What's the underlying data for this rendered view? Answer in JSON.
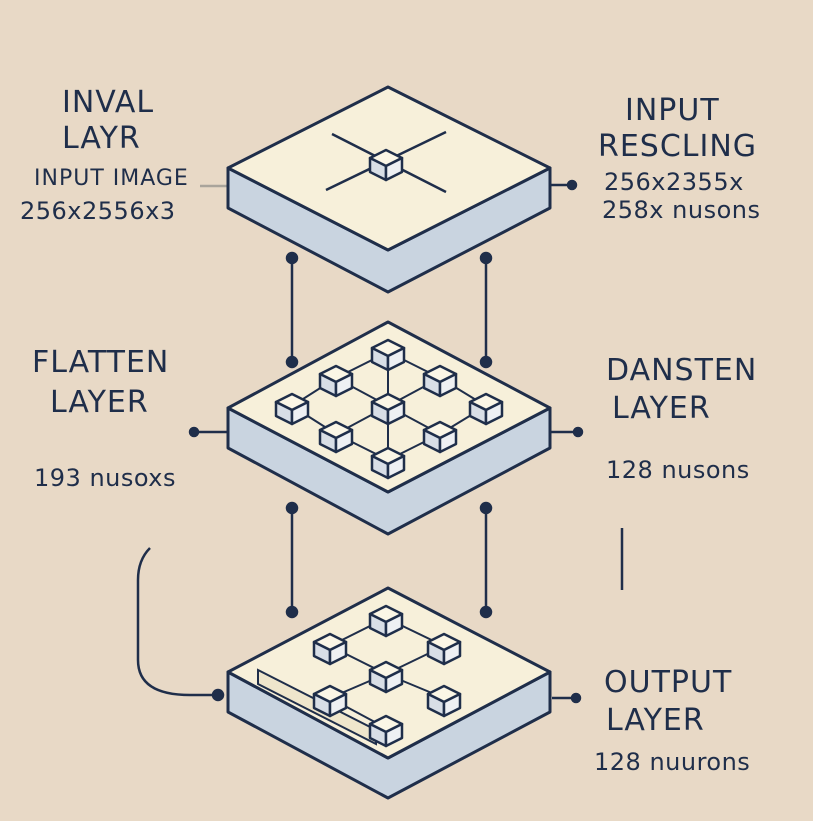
{
  "labels": {
    "top_left_title_1": "INVAL",
    "top_left_title_2": "LAYR",
    "top_left_sub_1": "INPUT IMAGE",
    "top_left_sub_2": "256x2556x3",
    "top_right_title_1": "INPUT",
    "top_right_title_2": "RESCLING",
    "top_right_sub_1": "256x2355x",
    "top_right_sub_2": "258x nusons",
    "mid_left_title_1": "FLATTEN",
    "mid_left_title_2": "LAYER",
    "mid_left_sub": "193 nusoxs",
    "mid_right_title_1": "DANSTEN",
    "mid_right_title_2": "LAYER",
    "mid_right_sub": "128 nusons",
    "bot_right_title_1": "OUTPUT",
    "bot_right_title_2": "LAYER",
    "bot_right_sub": "128 nuurons"
  },
  "colors": {
    "background": "#e8d9c6",
    "slab_top": "#f7f0da",
    "slab_side": "#c9d4e0",
    "stroke": "#1f2e4a"
  }
}
